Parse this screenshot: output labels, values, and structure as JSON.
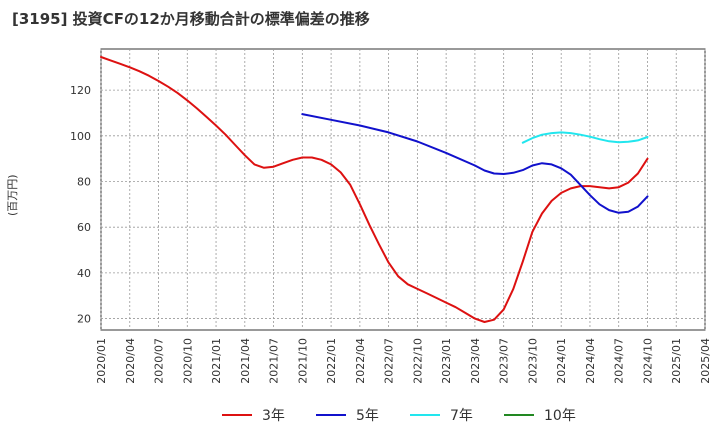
{
  "chart_data": {
    "type": "line",
    "title": "[3195]  投資CFの12か月移動合計の標準偏差の推移",
    "ylabel": "(百万円)",
    "xlabel": "",
    "ylim": [
      15,
      138
    ],
    "yticks": [
      20,
      40,
      60,
      80,
      100,
      120
    ],
    "xlim": [
      "2020-01",
      "2025-04"
    ],
    "xticks": [
      "2020/01",
      "2020/04",
      "2020/07",
      "2020/10",
      "2021/01",
      "2021/04",
      "2021/07",
      "2021/10",
      "2022/01",
      "2022/04",
      "2022/07",
      "2022/10",
      "2023/01",
      "2023/04",
      "2023/07",
      "2023/10",
      "2024/01",
      "2024/04",
      "2024/07",
      "2024/10",
      "2025/01",
      "2025/04"
    ],
    "grid": true,
    "legend_position": "bottom",
    "series": [
      {
        "name": "3年",
        "color": "#dd1111",
        "points": [
          [
            "2020-01",
            134.5
          ],
          [
            "2020-02",
            133.0
          ],
          [
            "2020-03",
            131.5
          ],
          [
            "2020-04",
            130.0
          ],
          [
            "2020-05",
            128.3
          ],
          [
            "2020-06",
            126.3
          ],
          [
            "2020-07",
            124.0
          ],
          [
            "2020-08",
            121.5
          ],
          [
            "2020-09",
            118.7
          ],
          [
            "2020-10",
            115.5
          ],
          [
            "2020-11",
            112.0
          ],
          [
            "2020-12",
            108.3
          ],
          [
            "2021-01",
            104.5
          ],
          [
            "2021-02",
            100.5
          ],
          [
            "2021-03",
            96.0
          ],
          [
            "2021-04",
            91.5
          ],
          [
            "2021-05",
            87.5
          ],
          [
            "2021-06",
            86.0
          ],
          [
            "2021-07",
            86.5
          ],
          [
            "2021-08",
            88.0
          ],
          [
            "2021-09",
            89.5
          ],
          [
            "2021-10",
            90.5
          ],
          [
            "2021-11",
            90.5
          ],
          [
            "2021-12",
            89.5
          ],
          [
            "2022-01",
            87.5
          ],
          [
            "2022-02",
            84.0
          ],
          [
            "2022-03",
            78.5
          ],
          [
            "2022-04",
            70.0
          ],
          [
            "2022-05",
            61.0
          ],
          [
            "2022-06",
            52.5
          ],
          [
            "2022-07",
            44.5
          ],
          [
            "2022-08",
            38.5
          ],
          [
            "2022-09",
            35.0
          ],
          [
            "2022-10",
            33.0
          ],
          [
            "2022-11",
            31.0
          ],
          [
            "2022-12",
            29.0
          ],
          [
            "2023-01",
            27.0
          ],
          [
            "2023-02",
            25.0
          ],
          [
            "2023-03",
            22.5
          ],
          [
            "2023-04",
            20.0
          ],
          [
            "2023-05",
            18.5
          ],
          [
            "2023-06",
            19.5
          ],
          [
            "2023-07",
            24.0
          ],
          [
            "2023-08",
            33.0
          ],
          [
            "2023-09",
            45.0
          ],
          [
            "2023-10",
            58.0
          ],
          [
            "2023-11",
            66.0
          ],
          [
            "2023-12",
            71.5
          ],
          [
            "2024-01",
            75.0
          ],
          [
            "2024-02",
            77.0
          ],
          [
            "2024-03",
            78.0
          ],
          [
            "2024-04",
            78.0
          ],
          [
            "2024-05",
            77.5
          ],
          [
            "2024-06",
            77.0
          ],
          [
            "2024-07",
            77.5
          ],
          [
            "2024-08",
            79.5
          ],
          [
            "2024-09",
            83.5
          ],
          [
            "2024-10",
            90.0
          ]
        ]
      },
      {
        "name": "5年",
        "color": "#1111cc",
        "points": [
          [
            "2021-10",
            109.5
          ],
          [
            "2022-01",
            107.0
          ],
          [
            "2022-04",
            104.5
          ],
          [
            "2022-07",
            101.5
          ],
          [
            "2022-10",
            97.5
          ],
          [
            "2023-01",
            92.5
          ],
          [
            "2023-04",
            87.0
          ],
          [
            "2023-05",
            84.8
          ],
          [
            "2023-06",
            83.5
          ],
          [
            "2023-07",
            83.3
          ],
          [
            "2023-08",
            83.8
          ],
          [
            "2023-09",
            85.0
          ],
          [
            "2023-10",
            87.0
          ],
          [
            "2023-11",
            88.0
          ],
          [
            "2023-12",
            87.5
          ],
          [
            "2024-01",
            85.8
          ],
          [
            "2024-02",
            83.0
          ],
          [
            "2024-03",
            78.5
          ],
          [
            "2024-04",
            74.0
          ],
          [
            "2024-05",
            70.0
          ],
          [
            "2024-06",
            67.5
          ],
          [
            "2024-07",
            66.3
          ],
          [
            "2024-08",
            66.8
          ],
          [
            "2024-09",
            69.0
          ],
          [
            "2024-10",
            73.5
          ]
        ]
      },
      {
        "name": "7年",
        "color": "#22e6ee",
        "points": [
          [
            "2023-09",
            97.0
          ],
          [
            "2023-10",
            99.0
          ],
          [
            "2023-11",
            100.5
          ],
          [
            "2023-12",
            101.2
          ],
          [
            "2024-01",
            101.5
          ],
          [
            "2024-02",
            101.2
          ],
          [
            "2024-03",
            100.5
          ],
          [
            "2024-04",
            99.6
          ],
          [
            "2024-05",
            98.5
          ],
          [
            "2024-06",
            97.6
          ],
          [
            "2024-07",
            97.2
          ],
          [
            "2024-08",
            97.4
          ],
          [
            "2024-09",
            98.0
          ],
          [
            "2024-10",
            99.5
          ]
        ]
      },
      {
        "name": "10年",
        "color": "#228822",
        "points": []
      }
    ]
  }
}
